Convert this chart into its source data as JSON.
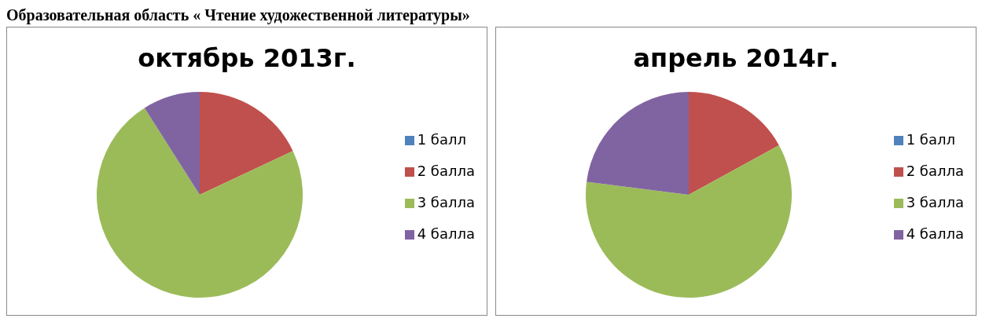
{
  "chart_data": [
    {
      "type": "pie",
      "title": "октябрь 2013г.",
      "annotations": [
        "Образовательная область « Чтение художественной литературы»"
      ],
      "categories": [
        "1 балл",
        "2 балла",
        "3 балла",
        "4 балла"
      ],
      "values": [
        0,
        18,
        73,
        9
      ],
      "colors": [
        "#4f81bd",
        "#c0504d",
        "#9bbb59",
        "#8064a2"
      ],
      "legend": "right"
    },
    {
      "type": "pie",
      "title": "апрель 2014г.",
      "categories": [
        "1 балл",
        "2 балла",
        "3 балла",
        "4 балла"
      ],
      "values": [
        0,
        17,
        60,
        23
      ],
      "colors": [
        "#4f81bd",
        "#c0504d",
        "#9bbb59",
        "#8064a2"
      ],
      "legend": "right"
    }
  ]
}
